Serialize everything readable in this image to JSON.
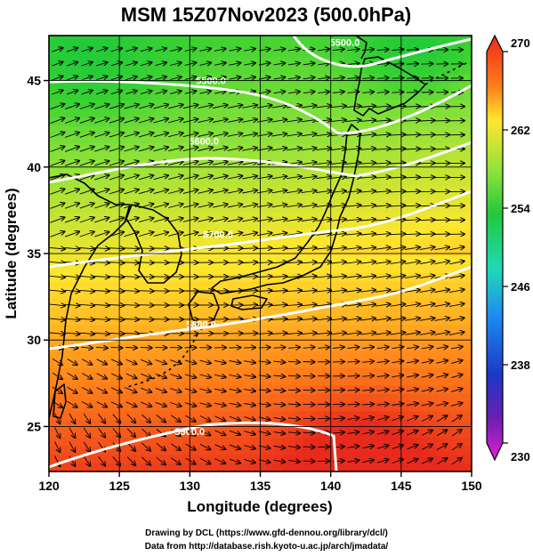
{
  "title": "MSM 15Z07Nov2023 (500.0hPa)",
  "xlabel": "Longitude (degrees)",
  "ylabel": "Latitude  (degrees)",
  "credit_line1": "Drawing by DCL (https://www.gfd-dennou.org/library/dcl/)",
  "credit_line2": "Data from http://database.rish.kyoto-u.ac.jp/arch/jmadata/",
  "map": {
    "lon_range": [
      120,
      150
    ],
    "lat_range": [
      22.4,
      47.6
    ],
    "lon_ticks": [
      120,
      125,
      130,
      135,
      140,
      145,
      150
    ],
    "lat_ticks": [
      25,
      30,
      35,
      40,
      45
    ],
    "gridlines": true,
    "shading": "temperature",
    "arrows": "wind vectors",
    "contours": [
      {
        "label": "5500.0",
        "lon": 141,
        "lat": 47
      },
      {
        "label": "5500.0",
        "lon": 131.5,
        "lat": 44.8
      },
      {
        "label": "5600.0",
        "lon": 131,
        "lat": 41.3
      },
      {
        "label": "5700.0",
        "lon": 132,
        "lat": 35.9
      },
      {
        "label": "5800.0",
        "lon": 130.8,
        "lat": 30.7
      },
      {
        "label": "5900.0",
        "lon": 130,
        "lat": 24.5
      }
    ]
  },
  "colorbar": {
    "min": 230,
    "max": 270,
    "tick_labels": [
      "270",
      "262",
      "254",
      "246",
      "238",
      "230"
    ],
    "tick_values": [
      270,
      262,
      254,
      246,
      238,
      230
    ],
    "colors": [
      "#ee3322",
      "#ff9922",
      "#ffdd33",
      "#dddd33",
      "#33cc33",
      "#22cccc",
      "#2299ff",
      "#1144cc",
      "#4411aa",
      "#cc22cc"
    ]
  }
}
